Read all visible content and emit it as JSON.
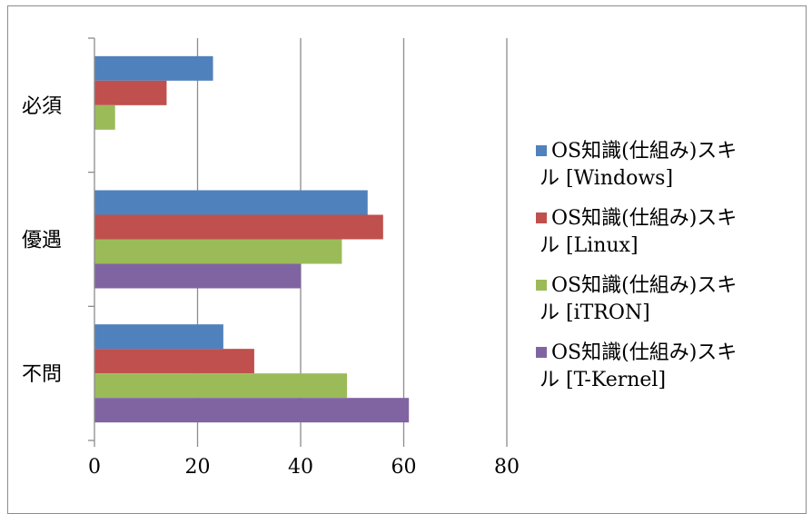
{
  "chart_data": {
    "type": "bar",
    "orientation": "horizontal",
    "categories": [
      "必須",
      "優遇",
      "不問"
    ],
    "series": [
      {
        "name": "OS知識(仕組み)スキル [Windows]",
        "values": [
          23,
          53,
          25
        ],
        "color": "#4F81BD"
      },
      {
        "name": "OS知識(仕組み)スキル [Linux]",
        "values": [
          14,
          56,
          31
        ],
        "color": "#C0504D"
      },
      {
        "name": "OS知識(仕組み)スキル [iTRON]",
        "values": [
          4,
          48,
          49
        ],
        "color": "#9BBB59"
      },
      {
        "name": "OS知識(仕組み)スキル [T-Kernel]",
        "values": [
          0,
          40,
          61
        ],
        "color": "#8064A2"
      }
    ],
    "xlim": [
      0,
      80
    ],
    "xticks": [
      "0",
      "20",
      "40",
      "60",
      "80"
    ],
    "grid": "vertical",
    "legend_position": "right",
    "legend_lines": [
      [
        "OS知識(仕組み)スキ",
        "ル [Windows]"
      ],
      [
        "OS知識(仕組み)スキ",
        "ル [Linux]"
      ],
      [
        "OS知識(仕組み)スキ",
        "ル [iTRON]"
      ],
      [
        "OS知識(仕組み)スキ",
        "ル [T-Kernel]"
      ]
    ]
  }
}
